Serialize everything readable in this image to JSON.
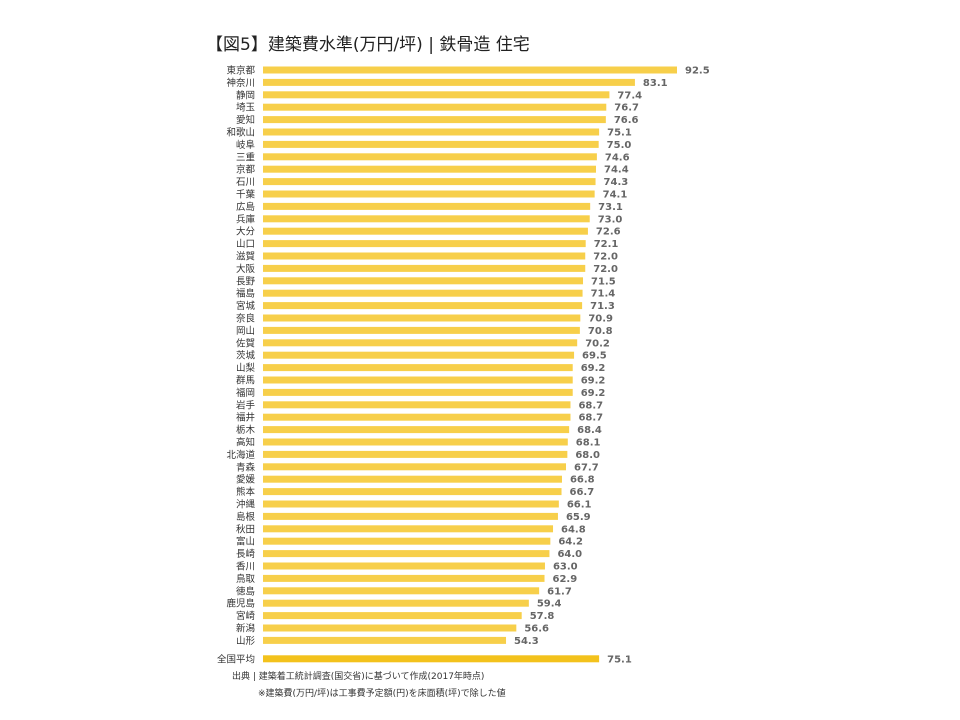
{
  "title": "【図5】建築費水準(万円/坪) | 鉄骨造 住宅",
  "footer": {
    "source": "出典 | 建築着工統計調査(国交省)に基づいて作成(2017年時点)",
    "note": "※建築費(万円/坪)は工事費予定額(円)を床面積(坪)で除した値"
  },
  "colors": {
    "bar": "#f7cf4a",
    "bar_total": "#f3c21c",
    "value_label": "#666666"
  },
  "chart_data": {
    "type": "bar",
    "orientation": "horizontal",
    "title": "【図5】建築費水準(万円/坪) | 鉄骨造 住宅",
    "categories": [
      "東京都",
      "神奈川",
      "静岡",
      "埼玉",
      "愛知",
      "和歌山",
      "岐阜",
      "三重",
      "京都",
      "石川",
      "千葉",
      "広島",
      "兵庫",
      "大分",
      "山口",
      "滋賀",
      "大阪",
      "長野",
      "福島",
      "宮城",
      "奈良",
      "岡山",
      "佐賀",
      "茨城",
      "山梨",
      "群馬",
      "福岡",
      "岩手",
      "福井",
      "栃木",
      "高知",
      "北海道",
      "青森",
      "愛媛",
      "熊本",
      "沖縄",
      "島根",
      "秋田",
      "富山",
      "長崎",
      "香川",
      "鳥取",
      "徳島",
      "鹿児島",
      "宮崎",
      "新潟",
      "山形",
      "全国平均"
    ],
    "values": [
      92.5,
      83.1,
      77.4,
      76.7,
      76.6,
      75.1,
      75.0,
      74.6,
      74.4,
      74.3,
      74.1,
      73.1,
      73.0,
      72.6,
      72.1,
      72.0,
      72.0,
      71.5,
      71.4,
      71.3,
      70.9,
      70.8,
      70.2,
      69.5,
      69.2,
      69.2,
      69.2,
      68.7,
      68.7,
      68.4,
      68.1,
      68.0,
      67.7,
      66.8,
      66.7,
      66.1,
      65.9,
      64.8,
      64.2,
      64.0,
      63.0,
      62.9,
      61.7,
      59.4,
      57.8,
      56.6,
      54.3,
      75.1
    ],
    "value_labels": [
      "92.5",
      "83.1",
      "77.4",
      "76.7",
      "76.6",
      "75.1",
      "75.0",
      "74.6",
      "74.4",
      "74.3",
      "74.1",
      "73.1",
      "73.0",
      "72.6",
      "72.1",
      "72.0",
      "72.0",
      "71.5",
      "71.4",
      "71.3",
      "70.9",
      "70.8",
      "70.2",
      "69.5",
      "69.2",
      "69.2",
      "69.2",
      "68.7",
      "68.7",
      "68.4",
      "68.1",
      "68.0",
      "67.7",
      "66.8",
      "66.7",
      "66.1",
      "65.9",
      "64.8",
      "64.2",
      "64.0",
      "63.0",
      "62.9",
      "61.7",
      "59.4",
      "57.8",
      "56.6",
      "54.3",
      "75.1"
    ],
    "xlim": [
      0,
      92.5
    ],
    "grid": false,
    "legend": false
  }
}
